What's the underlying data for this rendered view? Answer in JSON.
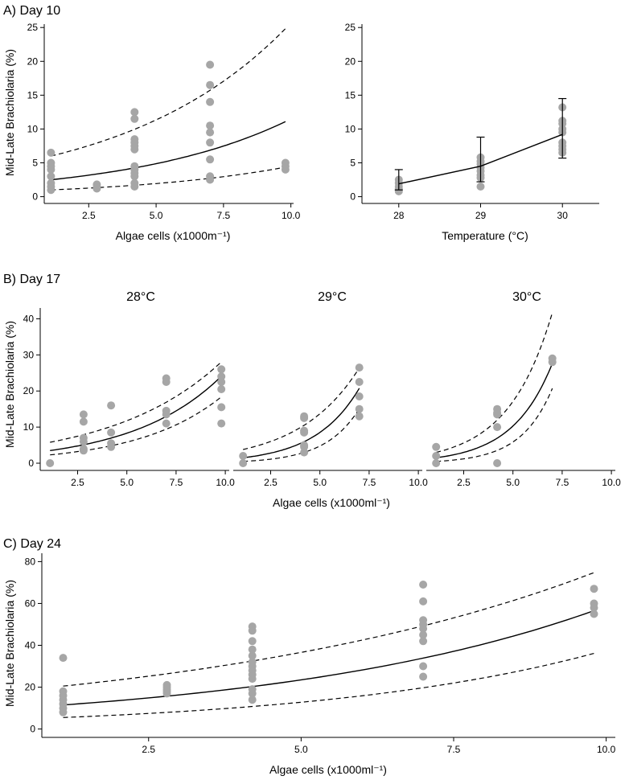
{
  "chart_data": [
    {
      "id": "a_left",
      "type": "scatter",
      "panel_label": "A) Day 10",
      "xlabel": "Algae cells (x1000m⁻¹)",
      "ylabel": "Mid-Late Brachiolaria (%)",
      "xlim": [
        0.85,
        10.1
      ],
      "ylim": [
        -1,
        25.5
      ],
      "xticks": [
        2.5,
        5.0,
        7.5,
        10.0
      ],
      "xtick_labels": [
        "2.5",
        "5.0",
        "7.5",
        "10.0"
      ],
      "yticks": [
        0,
        5,
        10,
        15,
        20,
        25
      ],
      "points": [
        [
          1.1,
          6.5
        ],
        [
          1.1,
          5
        ],
        [
          1.1,
          4.5
        ],
        [
          1.1,
          4
        ],
        [
          1.1,
          3
        ],
        [
          1.1,
          2
        ],
        [
          1.1,
          1.5
        ],
        [
          1.1,
          1
        ],
        [
          2.8,
          1.8
        ],
        [
          2.8,
          1.5
        ],
        [
          2.8,
          1.2
        ],
        [
          4.2,
          12.5
        ],
        [
          4.2,
          11.5
        ],
        [
          4.2,
          8.5
        ],
        [
          4.2,
          8
        ],
        [
          4.2,
          7.5
        ],
        [
          4.2,
          7
        ],
        [
          4.2,
          4.5
        ],
        [
          4.2,
          4
        ],
        [
          4.2,
          3.5
        ],
        [
          4.2,
          3
        ],
        [
          4.2,
          2
        ],
        [
          4.2,
          1.5
        ],
        [
          7.0,
          19.5
        ],
        [
          7.0,
          16.5
        ],
        [
          7.0,
          14
        ],
        [
          7.0,
          10.5
        ],
        [
          7.0,
          9.5
        ],
        [
          7.0,
          8
        ],
        [
          7.0,
          5.5
        ],
        [
          7.0,
          3
        ],
        [
          7.0,
          2.5
        ],
        [
          9.8,
          5
        ],
        [
          9.8,
          4.5
        ],
        [
          9.8,
          4
        ]
      ],
      "fit_line": {
        "x": [
          1.1,
          9.8
        ],
        "a": 2.5,
        "r": 0.1713
      },
      "ci_upper": {
        "x": [
          1.1,
          9.8
        ],
        "a": 6.0,
        "r": 0.1633
      },
      "ci_lower": {
        "x": [
          1.1,
          9.8
        ],
        "a": 1.0,
        "r": 0.1694
      }
    },
    {
      "id": "a_right",
      "type": "line",
      "xlabel": "Temperature (°C)",
      "ylabel": "",
      "xlim": [
        27.55,
        30.45
      ],
      "ylim": [
        -1,
        25.5
      ],
      "xticks": [
        28,
        29,
        30
      ],
      "xtick_labels": [
        "28",
        "29",
        "30"
      ],
      "yticks": [
        0,
        5,
        10,
        15,
        20,
        25
      ],
      "points": [
        [
          28,
          2.5
        ],
        [
          28,
          2
        ],
        [
          28,
          1.5
        ],
        [
          28,
          1.2
        ],
        [
          28,
          0.8
        ],
        [
          29,
          5.8
        ],
        [
          29,
          5.2
        ],
        [
          29,
          4.8
        ],
        [
          29,
          4.3
        ],
        [
          29,
          3.8
        ],
        [
          29,
          3.2
        ],
        [
          29,
          2.8
        ],
        [
          29,
          1.5
        ],
        [
          30,
          13.2
        ],
        [
          30,
          11.2
        ],
        [
          30,
          10.8
        ],
        [
          30,
          10
        ],
        [
          30,
          9.5
        ],
        [
          30,
          8
        ],
        [
          30,
          7.5
        ],
        [
          30,
          7
        ],
        [
          30,
          6.5
        ]
      ],
      "means": [
        [
          28,
          1.9
        ],
        [
          29,
          4.5
        ],
        [
          30,
          9.2
        ]
      ],
      "errors": [
        [
          1.0,
          4.0
        ],
        [
          2.2,
          8.8
        ],
        [
          5.7,
          14.5
        ]
      ]
    },
    {
      "id": "b_28",
      "type": "scatter",
      "panel_label": "B) Day 17",
      "facet": "28°C",
      "xlabel": "",
      "ylabel": "Mid-Late Brachiolaria (%)",
      "xlim": [
        0.6,
        10.2
      ],
      "ylim": [
        -2,
        43
      ],
      "xticks": [
        2.5,
        5.0,
        7.5,
        10.0
      ],
      "xtick_labels": [
        "2.5",
        "5.0",
        "7.5",
        "10.0"
      ],
      "yticks": [
        0,
        10,
        20,
        30,
        40
      ],
      "points": [
        [
          1.1,
          0
        ],
        [
          2.8,
          13.5
        ],
        [
          2.8,
          11.5
        ],
        [
          2.8,
          7
        ],
        [
          2.8,
          6
        ],
        [
          2.8,
          4
        ],
        [
          2.8,
          3.5
        ],
        [
          4.2,
          16
        ],
        [
          4.2,
          8.5
        ],
        [
          4.2,
          5.5
        ],
        [
          4.2,
          4.5
        ],
        [
          7.0,
          23.5
        ],
        [
          7.0,
          22.5
        ],
        [
          7.0,
          14.5
        ],
        [
          7.0,
          13.5
        ],
        [
          7.0,
          11
        ],
        [
          9.8,
          26
        ],
        [
          9.8,
          24
        ],
        [
          9.8,
          22.5
        ],
        [
          9.8,
          20.5
        ],
        [
          9.8,
          15.5
        ],
        [
          9.8,
          11
        ]
      ],
      "fit_line": {
        "x": [
          1.1,
          9.8
        ],
        "a": 3.5,
        "r": 0.2218
      },
      "ci_upper": {
        "x": [
          1.1,
          9.8
        ],
        "a": 5.8,
        "r": 0.1812
      },
      "ci_lower": {
        "x": [
          1.1,
          9.8
        ],
        "a": 2.3,
        "r": 0.239
      }
    },
    {
      "id": "b_29",
      "type": "scatter",
      "facet": "29°C",
      "xlabel": "Algae cells (x1000ml⁻¹)",
      "ylabel": "",
      "xlim": [
        0.6,
        10.2
      ],
      "ylim": [
        -2,
        43
      ],
      "xticks": [
        2.5,
        5.0,
        7.5,
        10.0
      ],
      "xtick_labels": [
        "2.5",
        "5.0",
        "7.5",
        "10.0"
      ],
      "points": [
        [
          1.1,
          2
        ],
        [
          1.1,
          0
        ],
        [
          4.2,
          13
        ],
        [
          4.2,
          12.5
        ],
        [
          4.2,
          9
        ],
        [
          4.2,
          8.5
        ],
        [
          4.2,
          5
        ],
        [
          4.2,
          4.5
        ],
        [
          4.2,
          3
        ],
        [
          7.0,
          26.5
        ],
        [
          7.0,
          22.5
        ],
        [
          7.0,
          18.5
        ],
        [
          7.0,
          15
        ],
        [
          7.0,
          13
        ]
      ],
      "fit_line": {
        "x": [
          1.1,
          7.0
        ],
        "a": 1.5,
        "r": 0.4454
      },
      "ci_upper": {
        "x": [
          1.1,
          7.0
        ],
        "a": 3.8,
        "r": 0.3286
      },
      "ci_lower": {
        "x": [
          1.1,
          7.0
        ],
        "a": 0.5,
        "r": 0.5776
      }
    },
    {
      "id": "b_30",
      "type": "scatter",
      "facet": "30°C",
      "xlabel": "",
      "ylabel": "",
      "xlim": [
        0.6,
        10.2
      ],
      "ylim": [
        -2,
        43
      ],
      "xticks": [
        2.5,
        5.0,
        7.5,
        10.0
      ],
      "xtick_labels": [
        "2.5",
        "5.0",
        "7.5",
        "10.0"
      ],
      "points": [
        [
          1.1,
          4.5
        ],
        [
          1.1,
          2
        ],
        [
          1.1,
          0
        ],
        [
          4.2,
          15
        ],
        [
          4.2,
          14
        ],
        [
          4.2,
          13.5
        ],
        [
          4.2,
          10
        ],
        [
          4.2,
          0
        ],
        [
          7.0,
          29
        ],
        [
          7.0,
          28
        ]
      ],
      "fit_line": {
        "x": [
          1.1,
          7.0
        ],
        "a": 1.5,
        "r": 0.4939
      },
      "ci_upper": {
        "x": [
          1.1,
          7.0
        ],
        "a": 3.0,
        "r": 0.4462
      },
      "ci_lower": {
        "x": [
          1.1,
          7.0
        ],
        "a": 0.5,
        "r": 0.6312
      }
    },
    {
      "id": "c",
      "type": "scatter",
      "panel_label": "C) Day 24",
      "xlabel": "Algae cells (x1000ml⁻¹)",
      "ylabel": "Mid-Late Brachiolaria (%)",
      "xlim": [
        0.75,
        10.15
      ],
      "ylim": [
        -4,
        84
      ],
      "xticks": [
        2.5,
        5.0,
        7.5,
        10.0
      ],
      "xtick_labels": [
        "2.5",
        "5.0",
        "7.5",
        "10.0"
      ],
      "yticks": [
        0,
        20,
        40,
        60,
        80
      ],
      "points": [
        [
          1.1,
          34
        ],
        [
          1.1,
          18
        ],
        [
          1.1,
          16
        ],
        [
          1.1,
          14
        ],
        [
          1.1,
          12
        ],
        [
          1.1,
          10
        ],
        [
          1.1,
          8
        ],
        [
          2.8,
          21
        ],
        [
          2.8,
          20
        ],
        [
          2.8,
          19
        ],
        [
          2.8,
          18
        ],
        [
          2.8,
          17
        ],
        [
          4.2,
          49
        ],
        [
          4.2,
          47
        ],
        [
          4.2,
          42
        ],
        [
          4.2,
          38
        ],
        [
          4.2,
          35
        ],
        [
          4.2,
          32
        ],
        [
          4.2,
          30
        ],
        [
          4.2,
          28
        ],
        [
          4.2,
          26
        ],
        [
          4.2,
          24
        ],
        [
          4.2,
          19
        ],
        [
          4.2,
          17
        ],
        [
          4.2,
          14
        ],
        [
          7.0,
          69
        ],
        [
          7.0,
          61
        ],
        [
          7.0,
          52
        ],
        [
          7.0,
          50
        ],
        [
          7.0,
          48
        ],
        [
          7.0,
          45
        ],
        [
          7.0,
          42
        ],
        [
          7.0,
          30
        ],
        [
          7.0,
          25
        ],
        [
          9.8,
          67
        ],
        [
          9.8,
          60
        ],
        [
          9.8,
          58
        ],
        [
          9.8,
          55
        ]
      ],
      "fit_line": {
        "x": [
          1.1,
          9.8
        ],
        "a": 11.5,
        "r": 0.1831
      },
      "ci_upper": {
        "x": [
          1.1,
          9.8
        ],
        "a": 20.5,
        "r": 0.1487
      },
      "ci_lower": {
        "x": [
          1.1,
          9.8
        ],
        "a": 5.5,
        "r": 0.2164
      }
    }
  ]
}
